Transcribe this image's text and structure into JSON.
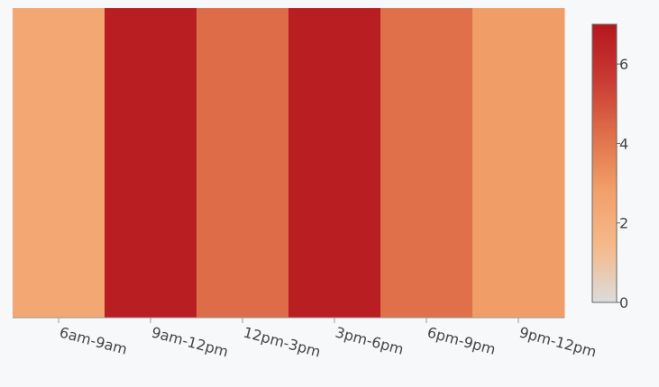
{
  "chart_data": {
    "type": "heatmap",
    "categories": [
      "6am-9am",
      "9am-12pm",
      "12pm-3pm",
      "3pm-6pm",
      "6pm-9pm",
      "9pm-12pm"
    ],
    "values": [
      2.4,
      6.7,
      4.3,
      6.7,
      4.2,
      2.9
    ],
    "colorbar": {
      "range": [
        0,
        7
      ],
      "ticks": [
        "0",
        "2",
        "4",
        "6"
      ],
      "colors": [
        "#dcdcdc",
        "#f5b98a",
        "#f2a06a",
        "#e0704a",
        "#c93a32",
        "#b5161f"
      ]
    },
    "title": "",
    "xlabel": "",
    "ylabel": ""
  }
}
